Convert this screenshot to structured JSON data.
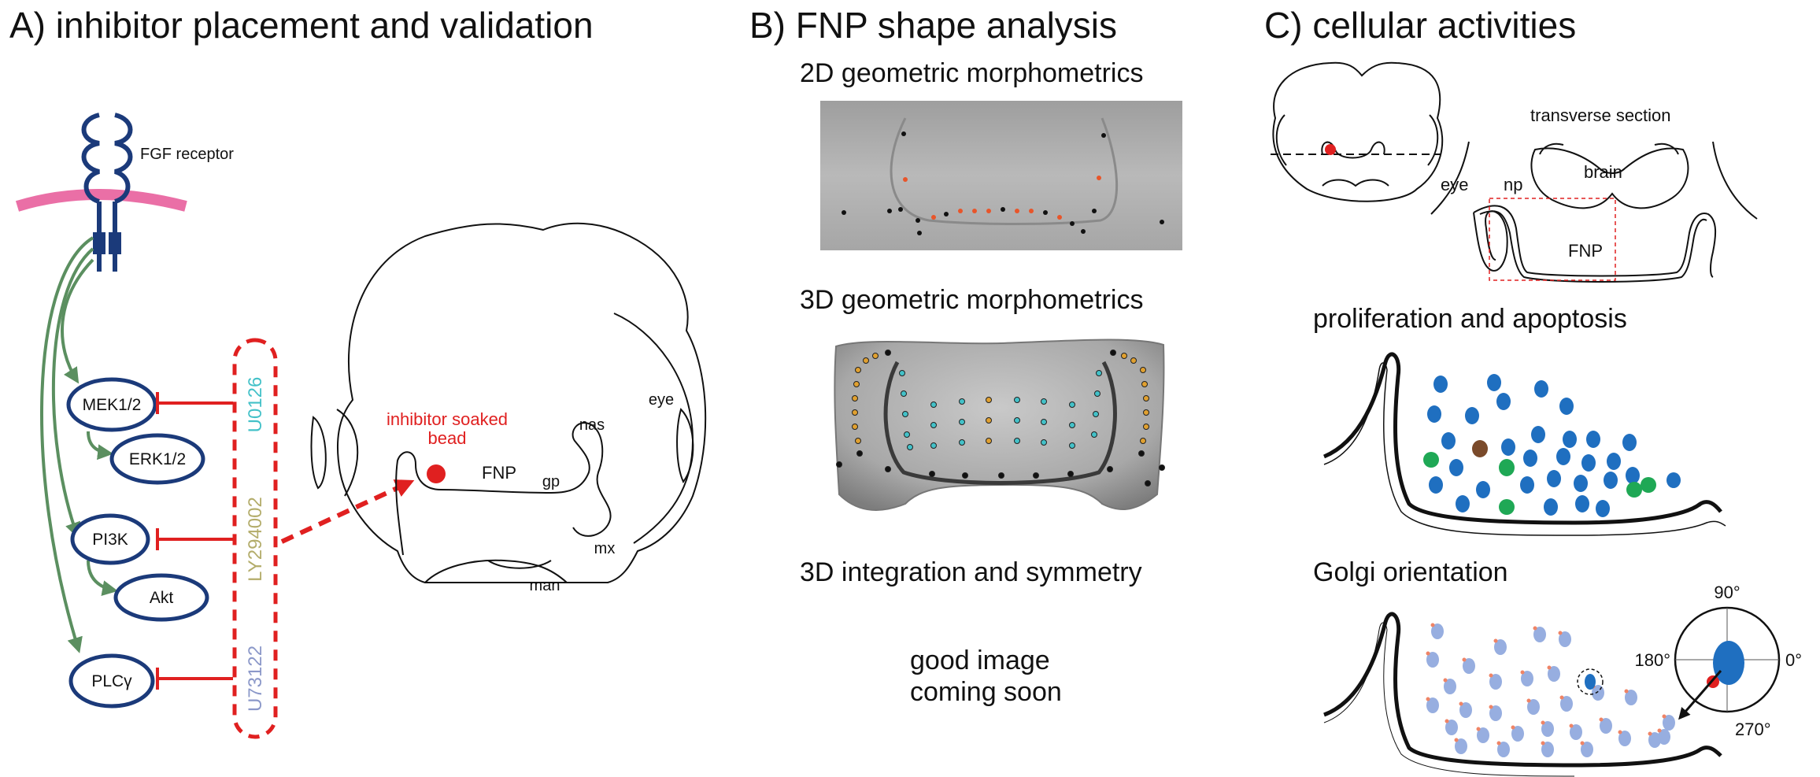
{
  "panel_a": {
    "title": "A) inhibitor placement and validation",
    "receptor_label": "FGF receptor",
    "nodes": [
      "MEK1/2",
      "ERK1/2",
      "PI3K",
      "Akt",
      "PLCγ"
    ],
    "inhibitors": [
      "U0126",
      "LY294002",
      "U73122"
    ],
    "bead_label_line1": "inhibitor soaked",
    "bead_label_line2": "bead",
    "face_labels": {
      "eye": "eye",
      "nas": "nas",
      "fnp": "FNP",
      "gp": "gp",
      "mx": "mx",
      "man": "man"
    },
    "colors": {
      "receptor": "#1b3a7a",
      "membrane": "#ea6fa6",
      "arrow": "#5b8f60",
      "inhibit": "#e02020",
      "u0126": "#43c1c8",
      "ly294002": "#b3ac6a",
      "u73122": "#8b98c9"
    }
  },
  "panel_b": {
    "title": "B) FNP shape analysis",
    "sub1": "2D geometric morphometrics",
    "sub2": "3D geometric morphometrics",
    "sub3": "3D integration and symmetry",
    "placeholder_line1": "good image",
    "placeholder_line2": "coming soon"
  },
  "panel_c": {
    "title": "C) cellular activities",
    "section_label": "transverse section",
    "labels": {
      "eye": "eye",
      "np": "np",
      "brain": "brain",
      "fnp": "FNP"
    },
    "sub1": "proliferation and apoptosis",
    "sub2": "Golgi orientation",
    "angles": [
      "90°",
      "180°",
      "0°",
      "270°"
    ],
    "colors": {
      "nucleus": "#1f6fc0",
      "apoptotic": "#1fa855",
      "other": "#7a4a2a",
      "golgi_cell": "#97aee0",
      "golgi": "#ef8466"
    }
  }
}
